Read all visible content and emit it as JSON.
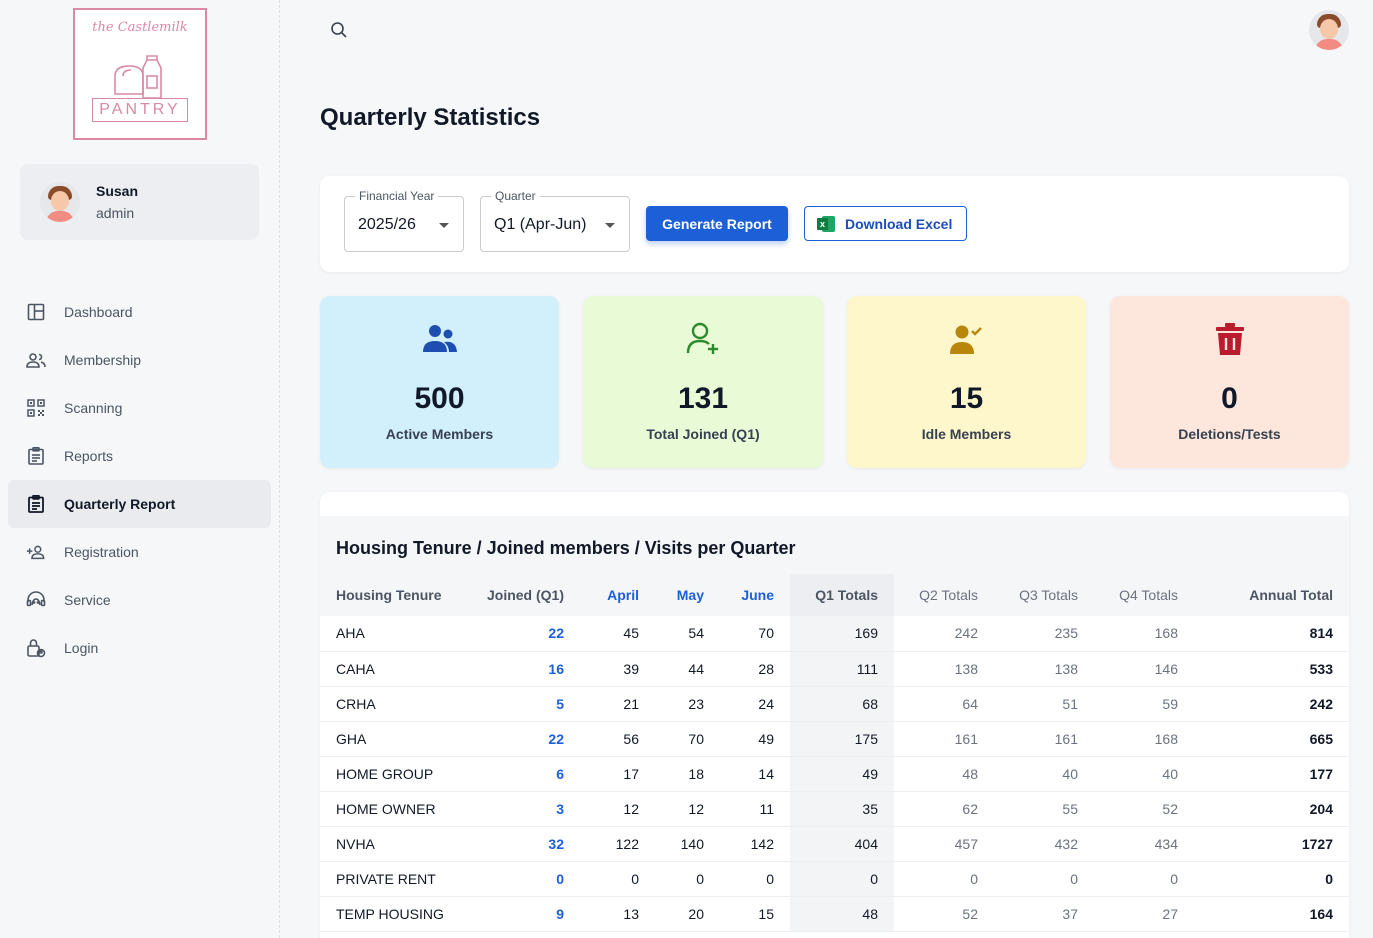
{
  "brand": {
    "logo_top": "the Castlemilk",
    "logo_word": "PANTRY"
  },
  "user": {
    "name": "Susan",
    "role": "admin"
  },
  "nav": [
    {
      "label": "Dashboard",
      "icon": "dashboard-icon"
    },
    {
      "label": "Membership",
      "icon": "people-icon"
    },
    {
      "label": "Scanning",
      "icon": "qr-code-icon"
    },
    {
      "label": "Reports",
      "icon": "clipboard-icon"
    },
    {
      "label": "Quarterly Report",
      "icon": "clipboard-list-icon",
      "active": true
    },
    {
      "label": "Registration",
      "icon": "person-add-icon"
    },
    {
      "label": "Service",
      "icon": "support-agent-icon"
    },
    {
      "label": "Login",
      "icon": "lock-person-icon"
    }
  ],
  "page": {
    "title": "Quarterly Statistics"
  },
  "filters": {
    "financial_year": {
      "label": "Financial Year",
      "value": "2025/26"
    },
    "quarter": {
      "label": "Quarter",
      "value": "Q1 (Apr-Jun)"
    },
    "generate_label": "Generate Report",
    "download_label": "Download Excel"
  },
  "stats": [
    {
      "value": "500",
      "label": "Active Members",
      "bg": "#d2f0fc",
      "icon_color": "#1e4fb0"
    },
    {
      "value": "131",
      "label": "Total Joined (Q1)",
      "bg": "#e8fad6",
      "icon_color": "#2b8a2b"
    },
    {
      "value": "15",
      "label": "Idle Members",
      "bg": "#fef7cc",
      "icon_color": "#b8860b"
    },
    {
      "value": "0",
      "label": "Deletions/Tests",
      "bg": "#fde7dc",
      "icon_color": "#b91c2c"
    }
  ],
  "table": {
    "title": "Housing Tenure / Joined members / Visits per Quarter",
    "headers": [
      "Housing Tenure",
      "Joined (Q1)",
      "April",
      "May",
      "June",
      "Q1 Totals",
      "Q2 Totals",
      "Q3 Totals",
      "Q4 Totals",
      "Annual Total"
    ],
    "rows": [
      [
        "AHA",
        "22",
        "45",
        "54",
        "70",
        "169",
        "242",
        "235",
        "168",
        "814"
      ],
      [
        "CAHA",
        "16",
        "39",
        "44",
        "28",
        "111",
        "138",
        "138",
        "146",
        "533"
      ],
      [
        "CRHA",
        "5",
        "21",
        "23",
        "24",
        "68",
        "64",
        "51",
        "59",
        "242"
      ],
      [
        "GHA",
        "22",
        "56",
        "70",
        "49",
        "175",
        "161",
        "161",
        "168",
        "665"
      ],
      [
        "HOME GROUP",
        "6",
        "17",
        "18",
        "14",
        "49",
        "48",
        "40",
        "40",
        "177"
      ],
      [
        "HOME OWNER",
        "3",
        "12",
        "12",
        "11",
        "35",
        "62",
        "55",
        "52",
        "204"
      ],
      [
        "NVHA",
        "32",
        "122",
        "140",
        "142",
        "404",
        "457",
        "432",
        "434",
        "1727"
      ],
      [
        "PRIVATE RENT",
        "0",
        "0",
        "0",
        "0",
        "0",
        "0",
        "0",
        "0",
        "0"
      ],
      [
        "TEMP HOUSING",
        "9",
        "13",
        "20",
        "15",
        "48",
        "52",
        "37",
        "27",
        "164"
      ]
    ]
  }
}
